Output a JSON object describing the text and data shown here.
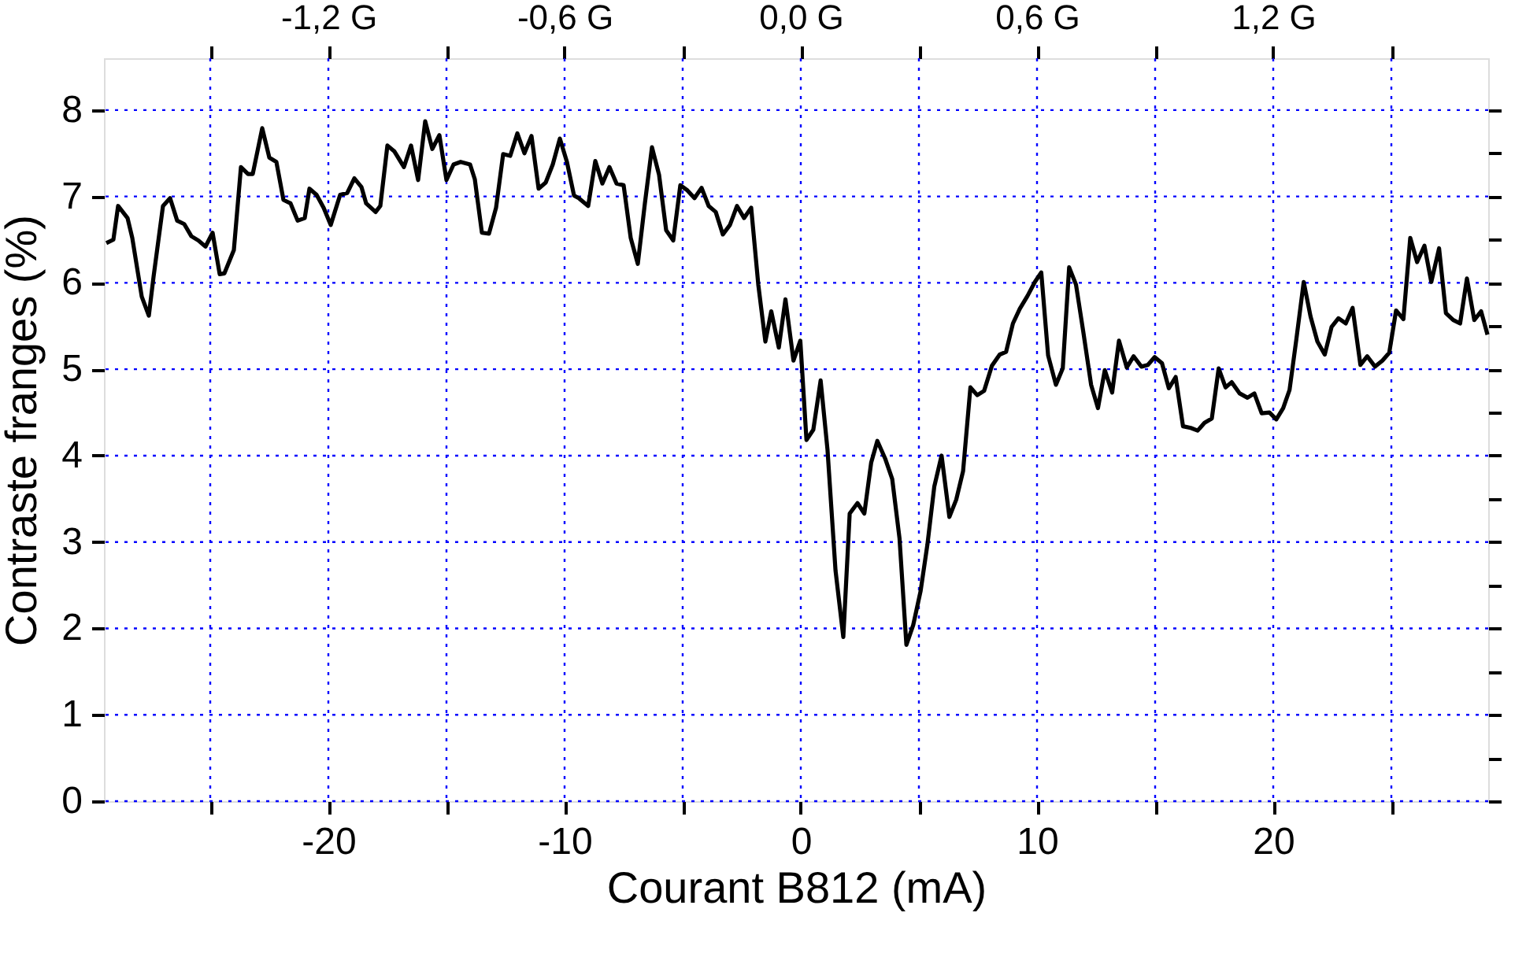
{
  "chart_data": {
    "type": "line",
    "xlabel": "Courant B812 (mA)",
    "ylabel": "Contraste franges (%)",
    "xlim": [
      -29.5,
      29.1
    ],
    "ylim": [
      0,
      8.6
    ],
    "xticks": [
      {
        "value": -25,
        "label": null
      },
      -20,
      {
        "value": -15,
        "label": null
      },
      -10,
      {
        "value": -5,
        "label": null
      },
      0,
      {
        "value": 5,
        "label": null
      },
      10,
      {
        "value": 15,
        "label": null
      },
      20,
      {
        "value": 25,
        "label": null
      }
    ],
    "yticks": [
      0,
      {
        "value": 0.5,
        "label": null
      },
      1,
      {
        "value": 1.5,
        "label": null
      },
      2,
      {
        "value": 2.5,
        "label": null
      },
      3,
      {
        "value": 3.5,
        "label": null
      },
      4,
      {
        "value": 4.5,
        "label": null
      },
      5,
      {
        "value": 5.5,
        "label": null
      },
      6,
      {
        "value": 6.5,
        "label": null
      },
      7,
      {
        "value": 7.5,
        "label": null
      },
      8
    ],
    "x2lim": [
      -1.77,
      1.746
    ],
    "x2ticks": [
      {
        "value": -1.5,
        "label": null
      },
      {
        "value": -1.2,
        "label": "-1,2 G"
      },
      {
        "value": -0.9,
        "label": null
      },
      {
        "value": -0.6,
        "label": "-0,6 G"
      },
      {
        "value": -0.3,
        "label": null
      },
      {
        "value": 0,
        "label": "0,0 G"
      },
      {
        "value": 0.3,
        "label": null
      },
      {
        "value": 0.6,
        "label": "0,6 G"
      },
      {
        "value": 0.9,
        "label": null
      },
      {
        "value": 1.2,
        "label": "1,2 G"
      },
      {
        "value": 1.5,
        "label": null
      }
    ],
    "grid": true,
    "series": [
      {
        "color": "#000000",
        "x": [
          -29.4,
          -29.1,
          -28.9,
          -28.5,
          -28.3,
          -27.9,
          -27.6,
          -27.4,
          -27.0,
          -26.7,
          -26.4,
          -26.1,
          -25.8,
          -25.5,
          -25.2,
          -24.9,
          -24.6,
          -24.4,
          -24.0,
          -23.7,
          -23.4,
          -23.2,
          -22.8,
          -22.5,
          -22.2,
          -21.9,
          -21.6,
          -21.3,
          -21.0,
          -20.8,
          -20.5,
          -20.2,
          -19.9,
          -19.5,
          -19.2,
          -18.9,
          -18.6,
          -18.4,
          -18.0,
          -17.8,
          -17.5,
          -17.2,
          -16.8,
          -16.5,
          -16.2,
          -15.9,
          -15.6,
          -15.3,
          -15.0,
          -14.7,
          -14.4,
          -14.0,
          -13.8,
          -13.5,
          -13.2,
          -12.9,
          -12.6,
          -12.3,
          -12.0,
          -11.7,
          -11.4,
          -11.1,
          -10.8,
          -10.5,
          -10.2,
          -9.9,
          -9.6,
          -9.4,
          -9.0,
          -8.7,
          -8.4,
          -8.1,
          -7.8,
          -7.5,
          -7.2,
          -6.9,
          -6.6,
          -6.3,
          -6.0,
          -5.7,
          -5.4,
          -5.1,
          -4.8,
          -4.5,
          -4.2,
          -3.9,
          -3.6,
          -3.3,
          -3.0,
          -2.7,
          -2.4,
          -2.1,
          -1.8,
          -1.5,
          -1.25,
          -0.93,
          -0.65,
          -0.31,
          -0.02,
          0.24,
          0.53,
          0.84,
          1.13,
          1.47,
          1.8,
          2.07,
          2.4,
          2.69,
          2.98,
          3.24,
          3.58,
          3.87,
          4.18,
          4.47,
          4.76,
          5.07,
          5.36,
          5.65,
          5.96,
          6.29,
          6.58,
          6.87,
          7.18,
          7.47,
          7.76,
          8.09,
          8.42,
          8.69,
          8.98,
          9.27,
          9.6,
          9.91,
          10.18,
          10.47,
          10.8,
          11.09,
          11.36,
          11.65,
          11.96,
          12.29,
          12.58,
          12.87,
          13.18,
          13.47,
          13.8,
          14.09,
          14.42,
          14.69,
          14.98,
          15.29,
          15.58,
          15.87,
          16.18,
          16.51,
          16.8,
          17.09,
          17.4,
          17.69,
          17.98,
          18.24,
          18.58,
          18.91,
          19.2,
          19.51,
          19.84,
          20.13,
          20.42,
          20.69,
          20.98,
          21.29,
          21.58,
          21.87,
          22.18,
          22.47,
          22.76,
          23.07,
          23.36,
          23.69,
          23.98,
          24.31,
          24.62,
          24.91,
          25.2,
          25.51,
          25.8,
          26.09,
          26.4,
          26.69,
          27.02,
          27.31,
          27.62,
          27.91,
          28.2,
          28.51,
          28.8,
          29.07
        ],
        "values": [
          6.46,
          6.5,
          6.89,
          6.75,
          6.52,
          5.84,
          5.62,
          6.07,
          6.89,
          6.98,
          6.72,
          6.68,
          6.54,
          6.49,
          6.42,
          6.58,
          6.1,
          6.11,
          6.38,
          7.34,
          7.26,
          7.26,
          7.79,
          7.45,
          7.4,
          6.96,
          6.92,
          6.72,
          6.75,
          7.09,
          7.02,
          6.87,
          6.67,
          7.02,
          7.04,
          7.21,
          7.11,
          6.92,
          6.82,
          6.89,
          7.59,
          7.52,
          7.34,
          7.59,
          7.19,
          7.87,
          7.55,
          7.71,
          7.19,
          7.37,
          7.4,
          7.37,
          7.2,
          6.58,
          6.57,
          6.87,
          7.49,
          7.47,
          7.73,
          7.5,
          7.7,
          7.09,
          7.16,
          7.37,
          7.67,
          7.4,
          7.01,
          6.98,
          6.89,
          7.41,
          7.15,
          7.34,
          7.15,
          7.13,
          6.52,
          6.22,
          6.92,
          7.57,
          7.25,
          6.61,
          6.49,
          7.13,
          7.07,
          6.98,
          7.1,
          6.89,
          6.82,
          6.56,
          6.67,
          6.89,
          6.75,
          6.87,
          5.98,
          5.32,
          5.67,
          5.25,
          5.81,
          5.1,
          5.33,
          4.18,
          4.3,
          4.87,
          4.07,
          2.67,
          1.9,
          3.33,
          3.45,
          3.33,
          3.92,
          4.17,
          3.96,
          3.73,
          3.04,
          1.81,
          2.04,
          2.43,
          2.97,
          3.64,
          4.0,
          3.29,
          3.49,
          3.82,
          4.79,
          4.7,
          4.75,
          5.04,
          5.17,
          5.2,
          5.53,
          5.7,
          5.85,
          6.01,
          6.12,
          5.16,
          4.82,
          5.01,
          6.18,
          5.98,
          5.43,
          4.82,
          4.55,
          4.99,
          4.73,
          5.33,
          5.02,
          5.15,
          5.03,
          5.05,
          5.14,
          5.07,
          4.78,
          4.91,
          4.34,
          4.32,
          4.29,
          4.38,
          4.43,
          5.01,
          4.79,
          4.85,
          4.72,
          4.67,
          4.72,
          4.49,
          4.5,
          4.42,
          4.55,
          4.76,
          5.35,
          6.01,
          5.61,
          5.32,
          5.17,
          5.49,
          5.59,
          5.53,
          5.71,
          5.05,
          5.15,
          5.03,
          5.1,
          5.19,
          5.68,
          5.58,
          6.52,
          6.24,
          6.43,
          6.01,
          6.4,
          5.65,
          5.57,
          5.53,
          6.05,
          5.57,
          5.67,
          5.4
        ]
      }
    ]
  }
}
